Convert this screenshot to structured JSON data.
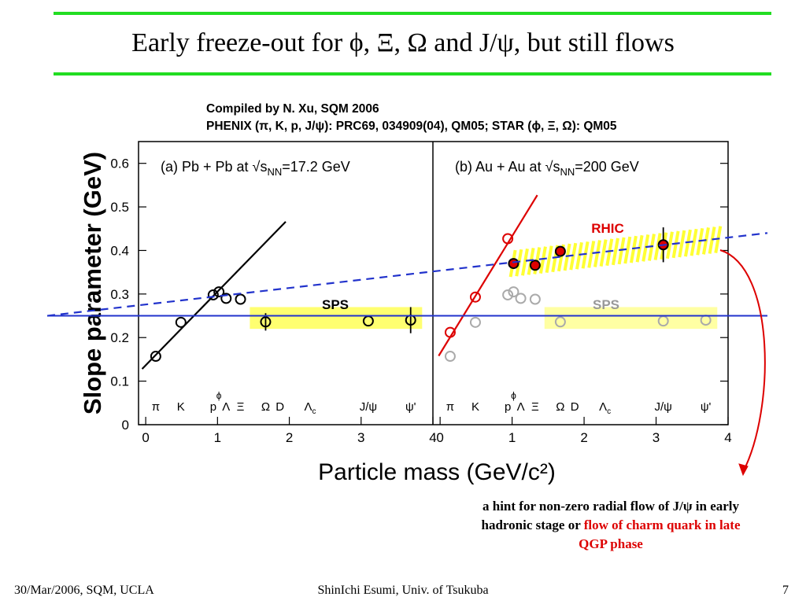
{
  "slide": {
    "title": "Early freeze-out for ϕ, Ξ, Ω and J/ψ, but still flows",
    "credit_line1": "Compiled by N. Xu, SQM 2006",
    "credit_line2": "PHENIX (π, K, p, J/ψ): PRC69, 034909(04), QM05;  STAR (ϕ, Ξ, Ω): QM05",
    "note_part1": "a hint for non-zero radial flow of J/ψ in early hadronic stage or ",
    "note_part2": "flow of charm quark in late QGP phase",
    "footer_left": "30/Mar/2006, SQM, UCLA",
    "footer_center": "ShinIchi Esumi, Univ. of Tsukuba",
    "footer_right": "7",
    "colors": {
      "rule": "#22dd22",
      "red": "#dd0000",
      "blue": "#2233cc",
      "yellow": "#ffff33"
    }
  },
  "chart_data": {
    "type": "scatter",
    "ylabel": "Slope parameter (GeV)",
    "xlabel": "Particle mass (GeV/c²)",
    "ylim": [
      0,
      0.65
    ],
    "yticks": [
      "0",
      "0.1",
      "0.2",
      "0.3",
      "0.4",
      "0.5",
      "0.6"
    ],
    "panels": [
      {
        "label": "(a) Pb + Pb at √s",
        "label_sub": "NN",
        "label_end": "=17.2 GeV",
        "xlim": [
          -0.1,
          4.0
        ],
        "xticks": [
          "0",
          "1",
          "2",
          "3",
          "4"
        ],
        "band_label": "SPS",
        "band": {
          "x": [
            1.45,
            3.85
          ],
          "y": [
            0.22,
            0.27
          ]
        },
        "particles": [
          {
            "name": "π",
            "x": 0.14
          },
          {
            "name": "K",
            "x": 0.49
          },
          {
            "name": "p",
            "x": 0.94
          },
          {
            "name": "ϕ",
            "x": 1.02,
            "raised": true
          },
          {
            "name": "Λ",
            "x": 1.12
          },
          {
            "name": "Ξ",
            "x": 1.32
          },
          {
            "name": "Ω",
            "x": 1.67
          },
          {
            "name": "D",
            "x": 1.87
          },
          {
            "name": "Λ",
            "sub": "c",
            "x": 2.29
          },
          {
            "name": "J/ψ",
            "x": 3.1
          },
          {
            "name": "ψ'",
            "x": 3.69
          }
        ],
        "points": [
          {
            "x": 0.14,
            "y": 0.157,
            "style": "open-black"
          },
          {
            "x": 0.49,
            "y": 0.235,
            "style": "open-black"
          },
          {
            "x": 0.94,
            "y": 0.298,
            "style": "open-black"
          },
          {
            "x": 1.02,
            "y": 0.305,
            "style": "open-black"
          },
          {
            "x": 1.12,
            "y": 0.29,
            "style": "open-black"
          },
          {
            "x": 1.32,
            "y": 0.288,
            "style": "open-black"
          },
          {
            "x": 1.67,
            "y": 0.236,
            "err": 0.02,
            "style": "open-black"
          },
          {
            "x": 3.1,
            "y": 0.238,
            "style": "open-black"
          },
          {
            "x": 3.69,
            "y": 0.24,
            "err": 0.03,
            "style": "open-black"
          }
        ],
        "lines": [
          {
            "x": [
              -0.05,
              1.95
            ],
            "y": [
              0.128,
              0.466
            ],
            "style": "solid-black"
          }
        ]
      },
      {
        "label": "(b) Au + Au at √s",
        "label_sub": "NN",
        "label_end": "=200 GeV",
        "xlim": [
          -0.1,
          4.0
        ],
        "xticks": [
          "0",
          "1",
          "2",
          "3",
          "4"
        ],
        "band_label": "SPS",
        "band": {
          "x": [
            1.45,
            3.85
          ],
          "y": [
            0.22,
            0.27
          ]
        },
        "band2_label": "RHIC",
        "particles": [
          {
            "name": "π",
            "x": 0.14
          },
          {
            "name": "K",
            "x": 0.49
          },
          {
            "name": "p",
            "x": 0.94
          },
          {
            "name": "ϕ",
            "x": 1.02,
            "raised": true
          },
          {
            "name": "Λ",
            "x": 1.12
          },
          {
            "name": "Ξ",
            "x": 1.32
          },
          {
            "name": "Ω",
            "x": 1.67
          },
          {
            "name": "D",
            "x": 1.87
          },
          {
            "name": "Λ",
            "sub": "c",
            "x": 2.29
          },
          {
            "name": "J/ψ",
            "x": 3.1
          },
          {
            "name": "ψ'",
            "x": 3.69
          }
        ],
        "points": [
          {
            "x": 0.14,
            "y": 0.157,
            "style": "open-gray"
          },
          {
            "x": 0.49,
            "y": 0.235,
            "style": "open-gray"
          },
          {
            "x": 0.94,
            "y": 0.298,
            "style": "open-gray"
          },
          {
            "x": 1.02,
            "y": 0.305,
            "style": "open-gray"
          },
          {
            "x": 1.12,
            "y": 0.29,
            "style": "open-gray"
          },
          {
            "x": 1.32,
            "y": 0.288,
            "style": "open-gray"
          },
          {
            "x": 1.67,
            "y": 0.236,
            "style": "open-gray"
          },
          {
            "x": 3.1,
            "y": 0.238,
            "style": "open-gray"
          },
          {
            "x": 3.69,
            "y": 0.24,
            "style": "open-gray"
          },
          {
            "x": 0.14,
            "y": 0.212,
            "style": "open-red"
          },
          {
            "x": 0.49,
            "y": 0.293,
            "style": "open-red"
          },
          {
            "x": 0.94,
            "y": 0.427,
            "style": "open-red"
          },
          {
            "x": 1.02,
            "y": 0.37,
            "style": "filled-red"
          },
          {
            "x": 1.32,
            "y": 0.366,
            "style": "filled-red"
          },
          {
            "x": 1.67,
            "y": 0.398,
            "style": "filled-red"
          },
          {
            "x": 3.1,
            "y": 0.413,
            "err": 0.04,
            "style": "filled-red"
          }
        ],
        "lines": [
          {
            "x": [
              -0.02,
              1.35
            ],
            "y": [
              0.158,
              0.527
            ],
            "style": "solid-red"
          }
        ]
      }
    ],
    "shared_lines": [
      {
        "y": 0.25,
        "style": "solid-blue"
      },
      {
        "y_left": 0.25,
        "y_right": 0.44,
        "style": "dashed-blue"
      }
    ]
  }
}
